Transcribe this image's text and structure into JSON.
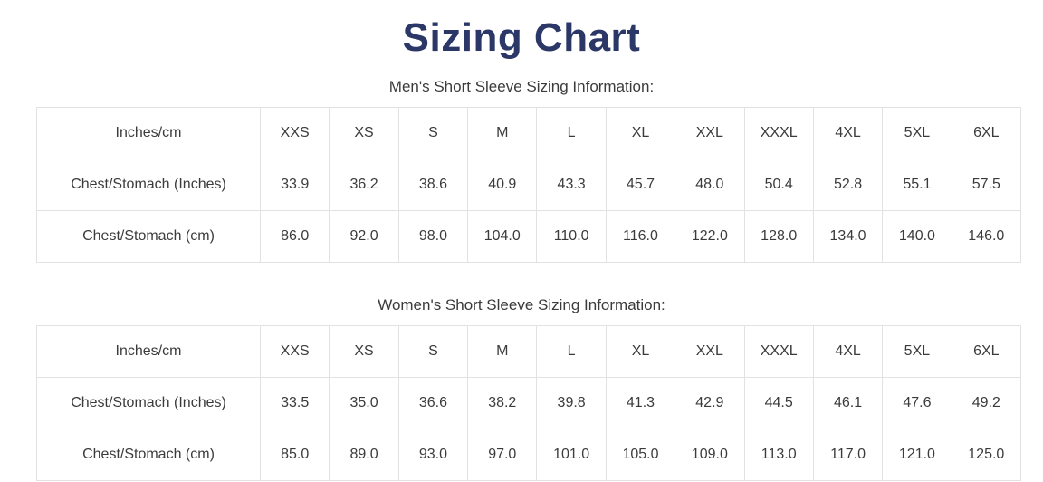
{
  "page": {
    "title": "Sizing Chart"
  },
  "colors": {
    "title": "#2b3766",
    "text": "#3b3b3b",
    "border": "#e2e2e2",
    "background": "#ffffff"
  },
  "tables": [
    {
      "caption": "Men's Short Sleeve Sizing Information:",
      "header": [
        "Inches/cm",
        "XXS",
        "XS",
        "S",
        "M",
        "L",
        "XL",
        "XXL",
        "XXXL",
        "4XL",
        "5XL",
        "6XL"
      ],
      "rows": [
        [
          "Chest/Stomach (Inches)",
          "33.9",
          "36.2",
          "38.6",
          "40.9",
          "43.3",
          "45.7",
          "48.0",
          "50.4",
          "52.8",
          "55.1",
          "57.5"
        ],
        [
          "Chest/Stomach (cm)",
          "86.0",
          "92.0",
          "98.0",
          "104.0",
          "110.0",
          "116.0",
          "122.0",
          "128.0",
          "134.0",
          "140.0",
          "146.0"
        ]
      ]
    },
    {
      "caption": "Women's Short Sleeve Sizing Information:",
      "header": [
        "Inches/cm",
        "XXS",
        "XS",
        "S",
        "M",
        "L",
        "XL",
        "XXL",
        "XXXL",
        "4XL",
        "5XL",
        "6XL"
      ],
      "rows": [
        [
          "Chest/Stomach (Inches)",
          "33.5",
          "35.0",
          "36.6",
          "38.2",
          "39.8",
          "41.3",
          "42.9",
          "44.5",
          "46.1",
          "47.6",
          "49.2"
        ],
        [
          "Chest/Stomach (cm)",
          "85.0",
          "89.0",
          "93.0",
          "97.0",
          "101.0",
          "105.0",
          "109.0",
          "113.0",
          "117.0",
          "121.0",
          "125.0"
        ]
      ]
    }
  ]
}
